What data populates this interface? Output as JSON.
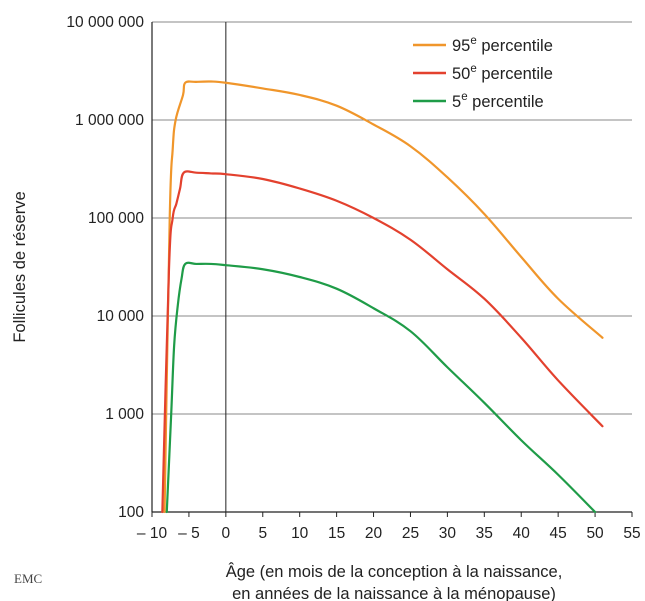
{
  "chart_data": {
    "type": "line",
    "title": "",
    "ylabel": "Follicules de réserve",
    "xlabel_lines": [
      "Âge (en mois de la conception à la naissance,",
      "en années de la naissance à la ménopause)"
    ],
    "yscale": "log",
    "ylim": [
      100,
      10000000
    ],
    "xlim": [
      -10,
      55
    ],
    "x_ticks": [
      -10,
      -5,
      0,
      5,
      10,
      15,
      20,
      25,
      30,
      35,
      40,
      45,
      50,
      55
    ],
    "x_tick_labels": [
      "– 10",
      "– 5",
      "0",
      "5",
      "10",
      "15",
      "20",
      "25",
      "30",
      "35",
      "40",
      "45",
      "50",
      "55"
    ],
    "y_ticks": [
      100,
      1000,
      10000,
      100000,
      1000000,
      10000000
    ],
    "y_tick_labels": [
      "100",
      "1 000",
      "10 000",
      "100 000",
      "1 000 000",
      "10 000 000"
    ],
    "grid": "horizontal",
    "legend_position": "top-right",
    "series": [
      {
        "name": "95",
        "superscript": "e",
        "suffix": " percentile",
        "color": "#f0962b",
        "points": [
          [
            -8.3,
            100
          ],
          [
            -7.6,
            100000
          ],
          [
            -7.2,
            500000
          ],
          [
            -6.8,
            1000000
          ],
          [
            -5.8,
            1800000
          ],
          [
            -5.5,
            2400000
          ],
          [
            -4,
            2450000
          ],
          [
            -2,
            2470000
          ],
          [
            0,
            2400000
          ],
          [
            5,
            2100000
          ],
          [
            10,
            1800000
          ],
          [
            15,
            1400000
          ],
          [
            20,
            900000
          ],
          [
            25,
            540000
          ],
          [
            30,
            260000
          ],
          [
            35,
            110000
          ],
          [
            40,
            40000
          ],
          [
            45,
            15000
          ],
          [
            51,
            6000
          ]
        ]
      },
      {
        "name": "50",
        "superscript": "e",
        "suffix": " percentile",
        "color": "#e3412e",
        "points": [
          [
            -8.6,
            100
          ],
          [
            -7.7,
            30000
          ],
          [
            -7.2,
            100000
          ],
          [
            -6.7,
            140000
          ],
          [
            -6.2,
            200000
          ],
          [
            -5.7,
            290000
          ],
          [
            -4,
            290000
          ],
          [
            -2,
            285000
          ],
          [
            0,
            280000
          ],
          [
            5,
            250000
          ],
          [
            10,
            200000
          ],
          [
            15,
            150000
          ],
          [
            20,
            100000
          ],
          [
            25,
            60000
          ],
          [
            30,
            30000
          ],
          [
            35,
            15000
          ],
          [
            40,
            6000
          ],
          [
            45,
            2200
          ],
          [
            51,
            750
          ]
        ]
      },
      {
        "name": "5",
        "superscript": "e",
        "suffix": " percentile",
        "color": "#1f9c48",
        "points": [
          [
            -8.0,
            100
          ],
          [
            -7.4,
            1000
          ],
          [
            -7.0,
            5000
          ],
          [
            -6.5,
            13000
          ],
          [
            -6.0,
            24000
          ],
          [
            -5.5,
            34000
          ],
          [
            -4,
            34000
          ],
          [
            -2,
            34000
          ],
          [
            0,
            33000
          ],
          [
            5,
            30000
          ],
          [
            10,
            25000
          ],
          [
            15,
            19000
          ],
          [
            20,
            12000
          ],
          [
            25,
            7000
          ],
          [
            30,
            3000
          ],
          [
            35,
            1300
          ],
          [
            40,
            540
          ],
          [
            45,
            240
          ],
          [
            50,
            100
          ]
        ]
      }
    ]
  },
  "logo_text": "EMC"
}
